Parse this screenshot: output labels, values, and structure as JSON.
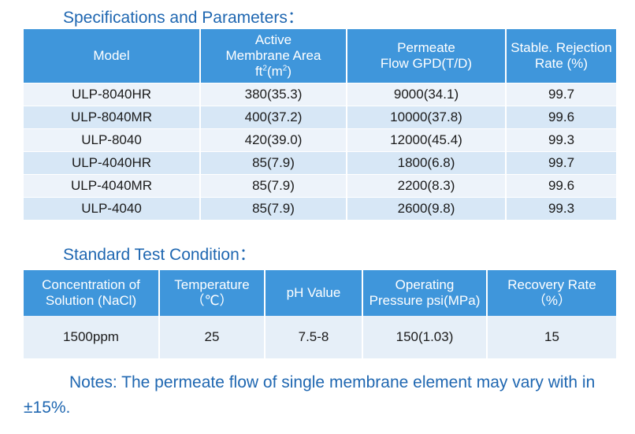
{
  "spec_section": {
    "title": "Specifications and Parameters：",
    "headers": {
      "model": "Model",
      "area_line1": "Active",
      "area_line2": "Membrane Area",
      "area_unit_a": "ft",
      "area_unit_sup1": "2",
      "area_unit_b": "(m",
      "area_unit_sup2": "2",
      "area_unit_c": ")",
      "flow_line1": "Permeate",
      "flow_line2": "Flow GPD(T/D)",
      "rejection_line1": "Stable. Rejection",
      "rejection_line2": "Rate (%)"
    },
    "rows": [
      {
        "model": "ULP-8040HR",
        "area": "380(35.3)",
        "flow": "9000(34.1)",
        "rejection": "99.7"
      },
      {
        "model": "ULP-8040MR",
        "area": "400(37.2)",
        "flow": "10000(37.8)",
        "rejection": "99.6"
      },
      {
        "model": "ULP-8040",
        "area": "420(39.0)",
        "flow": "12000(45.4)",
        "rejection": "99.3"
      },
      {
        "model": "ULP-4040HR",
        "area": "85(7.9)",
        "flow": "1800(6.8)",
        "rejection": "99.7"
      },
      {
        "model": "ULP-4040MR",
        "area": "85(7.9)",
        "flow": "2200(8.3)",
        "rejection": "99.6"
      },
      {
        "model": "ULP-4040",
        "area": "85(7.9)",
        "flow": "2600(9.8)",
        "rejection": "99.3"
      }
    ]
  },
  "condition_section": {
    "title": "Standard Test Condition：",
    "headers": {
      "concentration_line1": "Concentration of",
      "concentration_line2": "Solution (NaCl)",
      "temperature_line1": "Temperature",
      "temperature_line2": "（℃）",
      "ph": "pH Value",
      "pressure_line1": "Operating",
      "pressure_line2": "Pressure psi(MPa)",
      "recovery_line1": "Recovery Rate",
      "recovery_line2": "（%）"
    },
    "values": {
      "concentration": "1500ppm",
      "temperature": "25",
      "ph": "7.5-8",
      "pressure": "150(1.03)",
      "recovery": "15"
    }
  },
  "notes": "Notes: The permeate flow of single membrane element may vary with in ±15%."
}
